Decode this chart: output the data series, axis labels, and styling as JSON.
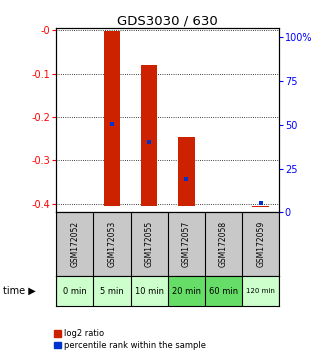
{
  "title": "GDS3030 / 630",
  "samples": [
    "GSM172052",
    "GSM172053",
    "GSM172055",
    "GSM172057",
    "GSM172058",
    "GSM172059"
  ],
  "time_labels": [
    "0 min",
    "5 min",
    "10 min",
    "20 min",
    "60 min",
    "120 min"
  ],
  "log2_bottoms": [
    null,
    -0.405,
    -0.405,
    -0.405,
    null,
    -0.405
  ],
  "log2_tops": [
    null,
    -0.002,
    -0.08,
    -0.245,
    null,
    -0.405
  ],
  "percentile_ranks": [
    null,
    48,
    38,
    18,
    null,
    5
  ],
  "ylim_left": [
    -0.42,
    0.005
  ],
  "ylim_right": [
    0,
    105
  ],
  "yticks_left": [
    0,
    -0.1,
    -0.2,
    -0.3,
    -0.4
  ],
  "ytick_labels_left": [
    "-0",
    "-0.1",
    "-0.2",
    "-0.3",
    "-0.4"
  ],
  "yticks_right": [
    0,
    25,
    50,
    75,
    100
  ],
  "ytick_labels_right": [
    "0",
    "25",
    "50",
    "75",
    "100%"
  ],
  "bar_color": "#cc2200",
  "dot_color": "#0033cc",
  "bg_color_plot": "#ffffff",
  "grid_color": "#000000",
  "sample_bg": "#c8c8c8",
  "time_bg_light": "#ccffcc",
  "time_bg_dark": "#66dd66",
  "time_colors_idx": [
    0,
    0,
    0,
    1,
    1,
    0
  ],
  "bar_width": 0.45
}
